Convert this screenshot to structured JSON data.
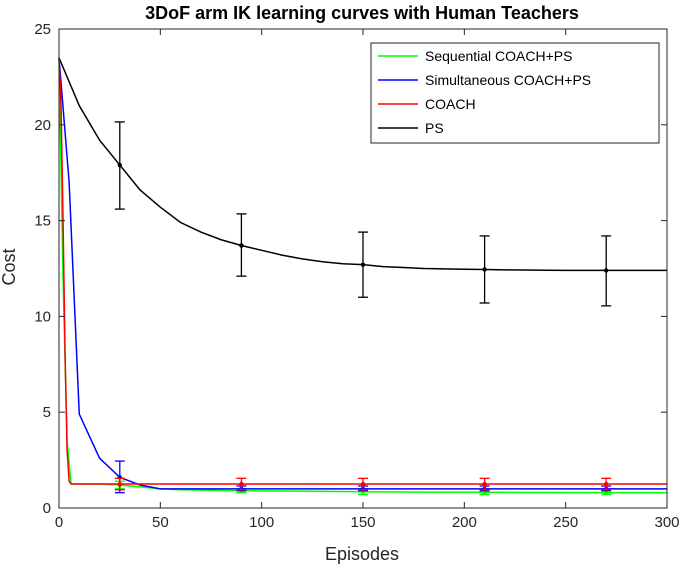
{
  "chart_data": {
    "type": "line",
    "title": "3DoF arm IK learning curves with Human Teachers",
    "xlabel": "Episodes",
    "ylabel": "Cost",
    "xlim": [
      0,
      300
    ],
    "ylim": [
      0,
      25
    ],
    "xticks": [
      0,
      50,
      100,
      150,
      200,
      250,
      300
    ],
    "yticks": [
      0,
      5,
      10,
      15,
      20,
      25
    ],
    "grid": false,
    "legend_position": "top-right",
    "series": [
      {
        "name": "Sequential COACH+PS",
        "color": "#00ff00",
        "x": [
          0,
          2,
          4,
          6,
          10,
          20,
          30,
          40,
          50,
          60,
          90,
          120,
          150,
          180,
          210,
          240,
          270,
          300
        ],
        "y": [
          23.5,
          12.0,
          3.5,
          1.25,
          1.25,
          1.25,
          1.2,
          1.1,
          1.0,
          0.95,
          0.9,
          0.88,
          0.85,
          0.83,
          0.82,
          0.81,
          0.8,
          0.8
        ],
        "error_x": [
          30,
          90,
          150,
          210,
          270
        ],
        "error_y": [
          1.2,
          0.9,
          0.85,
          0.82,
          0.8
        ],
        "error_low": [
          1.0,
          0.8,
          0.7,
          0.7,
          0.7
        ],
        "error_high": [
          1.4,
          1.0,
          1.0,
          0.95,
          0.9
        ]
      },
      {
        "name": "Simultaneous COACH+PS",
        "color": "#0000ff",
        "x": [
          0,
          5,
          10,
          20,
          30,
          40,
          50,
          60,
          90,
          120,
          150,
          180,
          210,
          240,
          270,
          300
        ],
        "y": [
          23.5,
          17.0,
          4.9,
          2.6,
          1.6,
          1.2,
          1.0,
          1.0,
          1.0,
          1.0,
          1.0,
          1.0,
          1.0,
          1.0,
          1.0,
          1.0
        ],
        "error_x": [
          30,
          90,
          150,
          210,
          270
        ],
        "error_y": [
          1.6,
          1.0,
          1.0,
          1.0,
          1.0
        ],
        "error_low": [
          0.8,
          0.9,
          0.9,
          0.9,
          0.9
        ],
        "error_high": [
          2.45,
          1.15,
          1.15,
          1.15,
          1.15
        ]
      },
      {
        "name": "COACH",
        "color": "#ff0000",
        "x": [
          0,
          1,
          2,
          3,
          4,
          5,
          6,
          10,
          30,
          90,
          150,
          210,
          270,
          300
        ],
        "y": [
          23.5,
          21.0,
          15.0,
          8.0,
          3.0,
          1.4,
          1.25,
          1.25,
          1.25,
          1.25,
          1.25,
          1.25,
          1.25,
          1.25
        ],
        "error_x": [
          30,
          90,
          150,
          210,
          270
        ],
        "error_y": [
          1.25,
          1.25,
          1.25,
          1.25,
          1.25
        ],
        "error_low": [
          0.95,
          0.95,
          0.95,
          0.95,
          0.95
        ],
        "error_high": [
          1.55,
          1.55,
          1.55,
          1.55,
          1.55
        ]
      },
      {
        "name": "PS",
        "color": "#000000",
        "x": [
          0,
          10,
          20,
          30,
          40,
          50,
          60,
          70,
          80,
          90,
          100,
          110,
          120,
          130,
          140,
          150,
          160,
          170,
          180,
          190,
          200,
          210,
          220,
          230,
          240,
          250,
          260,
          270,
          280,
          290,
          300
        ],
        "y": [
          23.5,
          21.0,
          19.2,
          17.9,
          16.6,
          15.7,
          14.9,
          14.4,
          14.0,
          13.7,
          13.45,
          13.2,
          13.0,
          12.85,
          12.75,
          12.7,
          12.6,
          12.55,
          12.5,
          12.48,
          12.46,
          12.45,
          12.43,
          12.42,
          12.41,
          12.4,
          12.4,
          12.4,
          12.4,
          12.4,
          12.4
        ],
        "error_x": [
          30,
          90,
          150,
          210,
          270
        ],
        "error_y": [
          17.9,
          13.7,
          12.7,
          12.45,
          12.4
        ],
        "error_low": [
          15.6,
          12.1,
          11.0,
          10.7,
          10.55
        ],
        "error_high": [
          20.15,
          15.35,
          14.4,
          14.2,
          14.2
        ]
      }
    ]
  }
}
